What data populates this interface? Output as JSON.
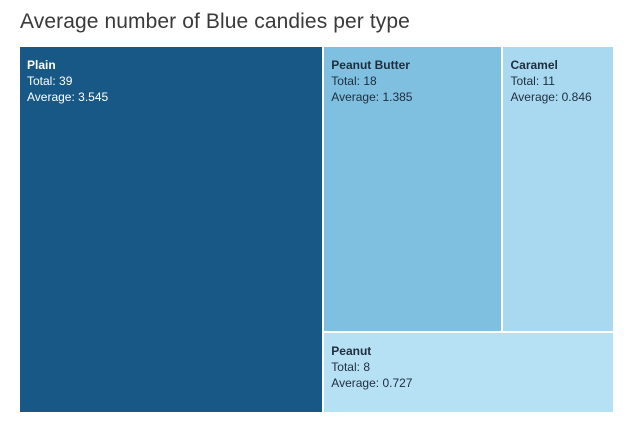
{
  "title": "Average number of Blue candies per type",
  "colors": {
    "Plain": "#175887",
    "Peanut Butter": "#7fbfe0",
    "Caramel": "#a9d9f0",
    "Peanut": "#b6e0f4"
  },
  "labels": {
    "total_prefix": "Total: ",
    "average_prefix": "Average: "
  },
  "chart_data": {
    "type": "treemap",
    "title": "Average number of Blue candies per type",
    "size_measure": "Total",
    "color_measure": "Average",
    "items": [
      {
        "name": "Plain",
        "total": 39,
        "average": 3.545
      },
      {
        "name": "Peanut Butter",
        "total": 18,
        "average": 1.385
      },
      {
        "name": "Caramel",
        "total": 11,
        "average": 0.846
      },
      {
        "name": "Peanut",
        "total": 8,
        "average": 0.727
      }
    ]
  }
}
